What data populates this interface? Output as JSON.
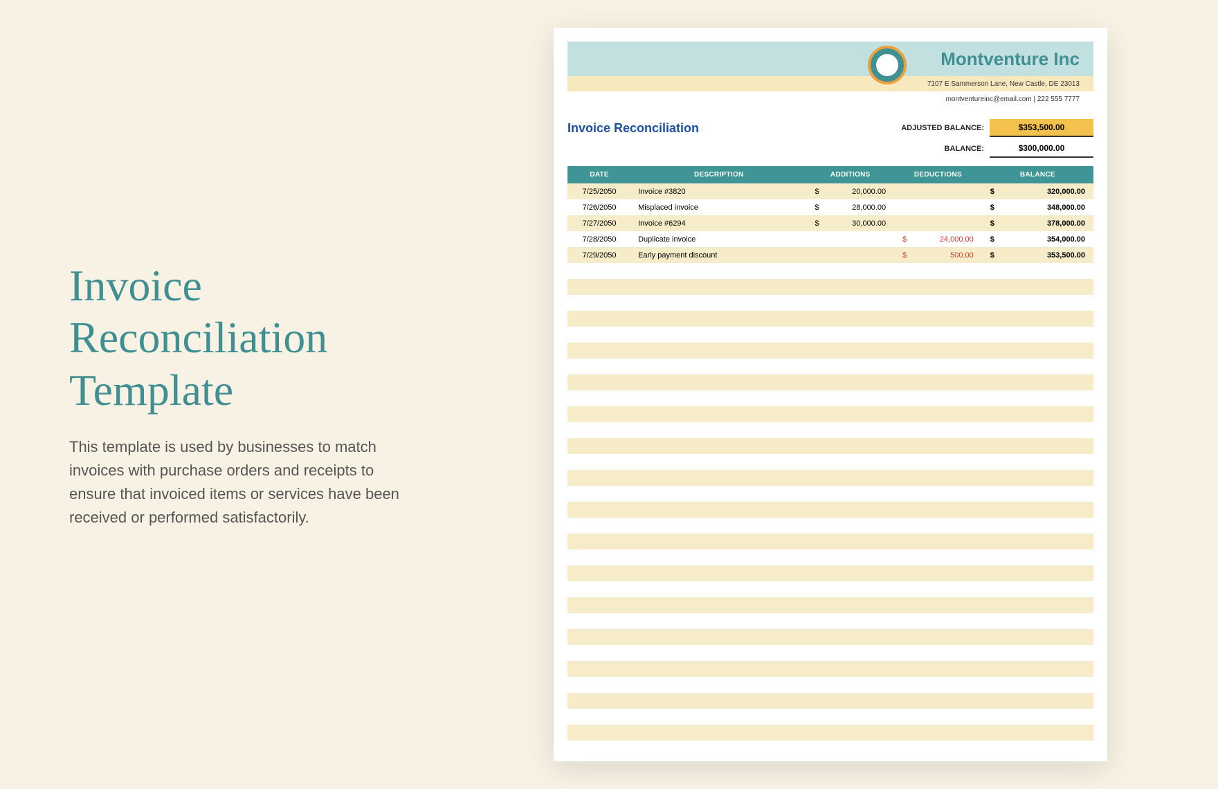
{
  "left": {
    "title": "Invoice Reconciliation Template",
    "description": "This template is used by businesses to match invoices with purchase orders and receipts to ensure that invoiced items or services have been received or performed satisfactorily."
  },
  "company": {
    "name": "Montventure Inc",
    "address": "7107 E Sammerson Lane, New Castle, DE 23013",
    "contact": "montventureinc@email.com | 222 555 7777"
  },
  "doc": {
    "title": "Invoice Reconciliation",
    "adjusted_label": "ADJUSTED BALANCE:",
    "adjusted_value": "$353,500.00",
    "balance_label": "BALANCE:",
    "balance_value": "$300,000.00"
  },
  "table": {
    "headers": {
      "date": "DATE",
      "description": "DESCRIPTION",
      "additions": "ADDITIONS",
      "deductions": "DEDUCTIONS",
      "balance": "BALANCE"
    },
    "rows": [
      {
        "date": "7/25/2050",
        "desc": "Invoice #3820",
        "add": "20,000.00",
        "ded": "",
        "bal": "320,000.00"
      },
      {
        "date": "7/26/2050",
        "desc": "Misplaced invoice",
        "add": "28,000.00",
        "ded": "",
        "bal": "348,000.00"
      },
      {
        "date": "7/27/2050",
        "desc": "Invoice #6294",
        "add": "30,000.00",
        "ded": "",
        "bal": "378,000.00"
      },
      {
        "date": "7/28/2050",
        "desc": "Duplicate invoice",
        "add": "",
        "ded": "24,000.00",
        "bal": "354,000.00"
      },
      {
        "date": "7/29/2050",
        "desc": "Early payment discount",
        "add": "",
        "ded": "500.00",
        "bal": "353,500.00"
      }
    ],
    "empty_rows": 30
  },
  "colors": {
    "page_bg": "#f7f2e4",
    "title_color": "#3f8f93",
    "banner_bg": "#c3e0e0",
    "banner2_bg": "#f7e8be",
    "header_bg": "#3f9496",
    "stripe_bg": "#f7ecc9",
    "adjusted_bg": "#f3c24d",
    "doc_title_color": "#1f4fa0",
    "neg_color": "#d13a2a"
  }
}
